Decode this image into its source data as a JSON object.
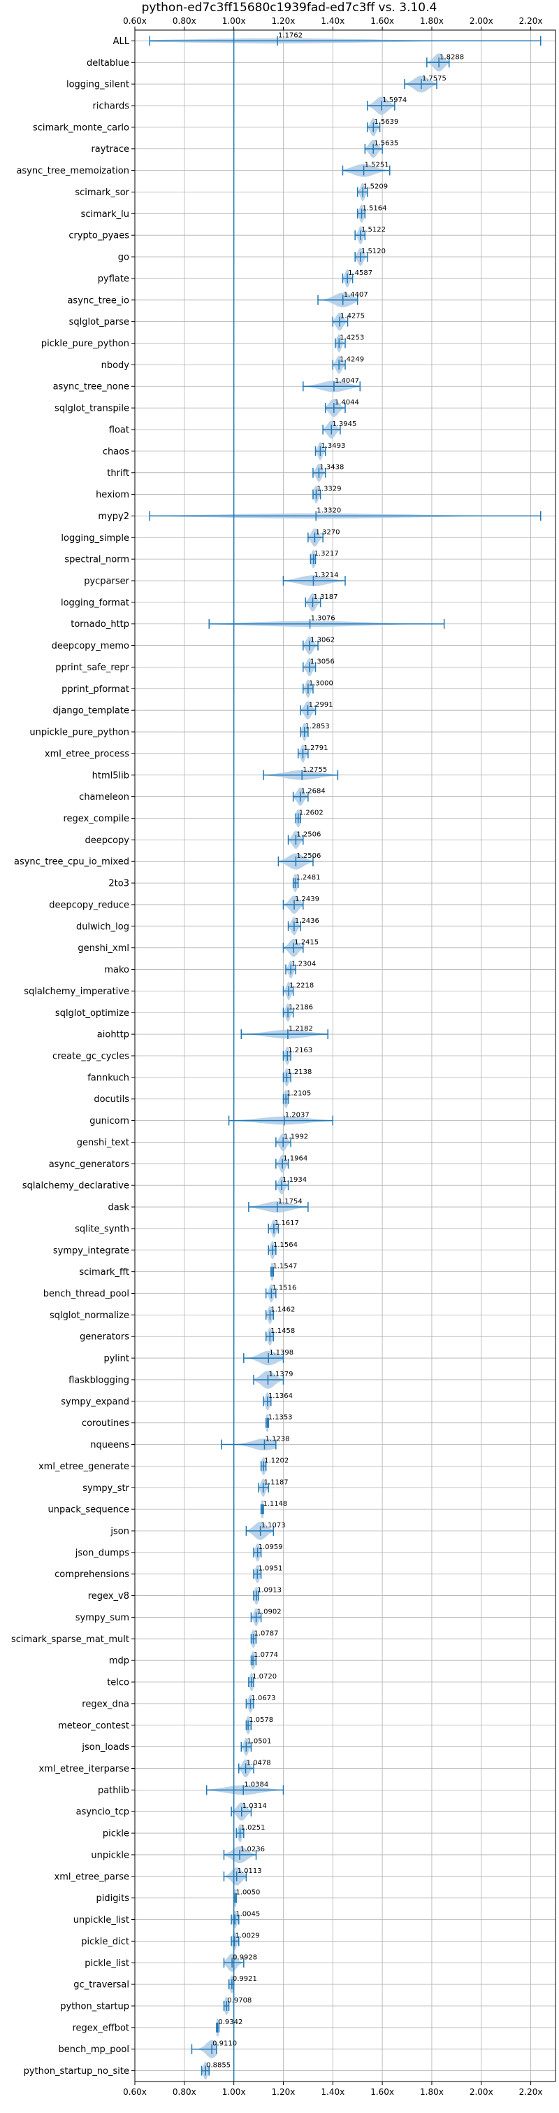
{
  "chart_data": {
    "type": "violin",
    "orientation": "horizontal",
    "title": "python-ed7c3ff15680c1939fad-ed7c3ff vs. 3.10.4",
    "xlabel": "",
    "ylabel": "",
    "xlim": [
      0.6,
      2.3
    ],
    "x_ticks": [
      0.6,
      0.8,
      1.0,
      1.2,
      1.4,
      1.6,
      1.8,
      2.0,
      2.2
    ],
    "x_tick_labels": [
      "0.60x",
      "0.80x",
      "1.00x",
      "1.20x",
      "1.40x",
      "1.60x",
      "1.80x",
      "2.00x",
      "2.20x"
    ],
    "reference_line": 1.0,
    "grid": true,
    "color": "#1f77b4",
    "fill_color": "#aecbe6",
    "benchmarks": [
      {
        "name": "ALL",
        "value": 1.1762,
        "label": "1.1762",
        "min": 0.66,
        "max": 2.24
      },
      {
        "name": "deltablue",
        "value": 1.8288,
        "label": "1.8288",
        "min": 1.78,
        "max": 1.87
      },
      {
        "name": "logging_silent",
        "value": 1.7575,
        "label": "1.7575",
        "min": 1.69,
        "max": 1.82
      },
      {
        "name": "richards",
        "value": 1.5974,
        "label": "1.5974",
        "min": 1.54,
        "max": 1.65
      },
      {
        "name": "scimark_monte_carlo",
        "value": 1.5639,
        "label": "1.5639",
        "min": 1.54,
        "max": 1.59
      },
      {
        "name": "raytrace",
        "value": 1.5635,
        "label": "1.5635",
        "min": 1.53,
        "max": 1.6
      },
      {
        "name": "async_tree_memoization",
        "value": 1.5251,
        "label": "1.5251",
        "min": 1.44,
        "max": 1.63
      },
      {
        "name": "scimark_sor",
        "value": 1.5209,
        "label": "1.5209",
        "min": 1.5,
        "max": 1.54
      },
      {
        "name": "scimark_lu",
        "value": 1.5164,
        "label": "1.5164",
        "min": 1.5,
        "max": 1.53
      },
      {
        "name": "crypto_pyaes",
        "value": 1.5122,
        "label": "1.5122",
        "min": 1.49,
        "max": 1.53
      },
      {
        "name": "go",
        "value": 1.512,
        "label": "1.5120",
        "min": 1.49,
        "max": 1.54
      },
      {
        "name": "pyflate",
        "value": 1.4587,
        "label": "1.4587",
        "min": 1.44,
        "max": 1.48
      },
      {
        "name": "async_tree_io",
        "value": 1.4407,
        "label": "1.4407",
        "min": 1.34,
        "max": 1.5
      },
      {
        "name": "sqlglot_parse",
        "value": 1.4275,
        "label": "1.4275",
        "min": 1.4,
        "max": 1.46
      },
      {
        "name": "pickle_pure_python",
        "value": 1.4253,
        "label": "1.4253",
        "min": 1.41,
        "max": 1.45
      },
      {
        "name": "nbody",
        "value": 1.4249,
        "label": "1.4249",
        "min": 1.4,
        "max": 1.45
      },
      {
        "name": "async_tree_none",
        "value": 1.4047,
        "label": "1.4047",
        "min": 1.28,
        "max": 1.51
      },
      {
        "name": "sqlglot_transpile",
        "value": 1.4044,
        "label": "1.4044",
        "min": 1.37,
        "max": 1.45
      },
      {
        "name": "float",
        "value": 1.3945,
        "label": "1.3945",
        "min": 1.36,
        "max": 1.43
      },
      {
        "name": "chaos",
        "value": 1.3493,
        "label": "1.3493",
        "min": 1.33,
        "max": 1.37
      },
      {
        "name": "thrift",
        "value": 1.3438,
        "label": "1.3438",
        "min": 1.32,
        "max": 1.37
      },
      {
        "name": "hexiom",
        "value": 1.3329,
        "label": "1.3329",
        "min": 1.32,
        "max": 1.35
      },
      {
        "name": "mypy2",
        "value": 1.332,
        "label": "1.3320",
        "min": 0.66,
        "max": 2.24
      },
      {
        "name": "logging_simple",
        "value": 1.327,
        "label": "1.3270",
        "min": 1.3,
        "max": 1.36
      },
      {
        "name": "spectral_norm",
        "value": 1.3217,
        "label": "1.3217",
        "min": 1.31,
        "max": 1.33
      },
      {
        "name": "pycparser",
        "value": 1.3214,
        "label": "1.3214",
        "min": 1.2,
        "max": 1.45
      },
      {
        "name": "logging_format",
        "value": 1.3187,
        "label": "1.3187",
        "min": 1.29,
        "max": 1.35
      },
      {
        "name": "tornado_http",
        "value": 1.3076,
        "label": "1.3076",
        "min": 0.9,
        "max": 1.85
      },
      {
        "name": "deepcopy_memo",
        "value": 1.3062,
        "label": "1.3062",
        "min": 1.28,
        "max": 1.34
      },
      {
        "name": "pprint_safe_repr",
        "value": 1.3056,
        "label": "1.3056",
        "min": 1.28,
        "max": 1.33
      },
      {
        "name": "pprint_pformat",
        "value": 1.3,
        "label": "1.3000",
        "min": 1.28,
        "max": 1.32
      },
      {
        "name": "django_template",
        "value": 1.2991,
        "label": "1.2991",
        "min": 1.27,
        "max": 1.33
      },
      {
        "name": "unpickle_pure_python",
        "value": 1.2853,
        "label": "1.2853",
        "min": 1.27,
        "max": 1.3
      },
      {
        "name": "xml_etree_process",
        "value": 1.2791,
        "label": "1.2791",
        "min": 1.26,
        "max": 1.3
      },
      {
        "name": "html5lib",
        "value": 1.2755,
        "label": "1.2755",
        "min": 1.12,
        "max": 1.42
      },
      {
        "name": "chameleon",
        "value": 1.2684,
        "label": "1.2684",
        "min": 1.24,
        "max": 1.3
      },
      {
        "name": "regex_compile",
        "value": 1.2602,
        "label": "1.2602",
        "min": 1.25,
        "max": 1.27
      },
      {
        "name": "deepcopy",
        "value": 1.2506,
        "label": "1.2506",
        "min": 1.22,
        "max": 1.28
      },
      {
        "name": "async_tree_cpu_io_mixed",
        "value": 1.2506,
        "label": "1.2506",
        "min": 1.18,
        "max": 1.32
      },
      {
        "name": "2to3",
        "value": 1.2481,
        "label": "1.2481",
        "min": 1.24,
        "max": 1.26
      },
      {
        "name": "deepcopy_reduce",
        "value": 1.2439,
        "label": "1.2439",
        "min": 1.2,
        "max": 1.28
      },
      {
        "name": "dulwich_log",
        "value": 1.2436,
        "label": "1.2436",
        "min": 1.22,
        "max": 1.27
      },
      {
        "name": "genshi_xml",
        "value": 1.2415,
        "label": "1.2415",
        "min": 1.2,
        "max": 1.28
      },
      {
        "name": "mako",
        "value": 1.2304,
        "label": "1.2304",
        "min": 1.21,
        "max": 1.25
      },
      {
        "name": "sqlalchemy_imperative",
        "value": 1.2218,
        "label": "1.2218",
        "min": 1.2,
        "max": 1.24
      },
      {
        "name": "sqlglot_optimize",
        "value": 1.2186,
        "label": "1.2186",
        "min": 1.2,
        "max": 1.24
      },
      {
        "name": "aiohttp",
        "value": 1.2182,
        "label": "1.2182",
        "min": 1.03,
        "max": 1.38
      },
      {
        "name": "create_gc_cycles",
        "value": 1.2163,
        "label": "1.2163",
        "min": 1.2,
        "max": 1.23
      },
      {
        "name": "fannkuch",
        "value": 1.2138,
        "label": "1.2138",
        "min": 1.2,
        "max": 1.23
      },
      {
        "name": "docutils",
        "value": 1.2105,
        "label": "1.2105",
        "min": 1.2,
        "max": 1.22
      },
      {
        "name": "gunicorn",
        "value": 1.2037,
        "label": "1.2037",
        "min": 0.98,
        "max": 1.4
      },
      {
        "name": "genshi_text",
        "value": 1.1992,
        "label": "1.1992",
        "min": 1.17,
        "max": 1.23
      },
      {
        "name": "async_generators",
        "value": 1.1964,
        "label": "1.1964",
        "min": 1.17,
        "max": 1.22
      },
      {
        "name": "sqlalchemy_declarative",
        "value": 1.1934,
        "label": "1.1934",
        "min": 1.17,
        "max": 1.22
      },
      {
        "name": "dask",
        "value": 1.1754,
        "label": "1.1754",
        "min": 1.06,
        "max": 1.3
      },
      {
        "name": "sqlite_synth",
        "value": 1.1617,
        "label": "1.1617",
        "min": 1.14,
        "max": 1.18
      },
      {
        "name": "sympy_integrate",
        "value": 1.1564,
        "label": "1.1564",
        "min": 1.14,
        "max": 1.17
      },
      {
        "name": "scimark_fft",
        "value": 1.1547,
        "label": "1.1547",
        "min": 1.15,
        "max": 1.16
      },
      {
        "name": "bench_thread_pool",
        "value": 1.1516,
        "label": "1.1516",
        "min": 1.13,
        "max": 1.17
      },
      {
        "name": "sqlglot_normalize",
        "value": 1.1462,
        "label": "1.1462",
        "min": 1.13,
        "max": 1.16
      },
      {
        "name": "generators",
        "value": 1.1458,
        "label": "1.1458",
        "min": 1.13,
        "max": 1.16
      },
      {
        "name": "pylint",
        "value": 1.1398,
        "label": "1.1398",
        "min": 1.04,
        "max": 1.2
      },
      {
        "name": "flaskblogging",
        "value": 1.1379,
        "label": "1.1379",
        "min": 1.08,
        "max": 1.2
      },
      {
        "name": "sympy_expand",
        "value": 1.1364,
        "label": "1.1364",
        "min": 1.12,
        "max": 1.15
      },
      {
        "name": "coroutines",
        "value": 1.1353,
        "label": "1.1353",
        "min": 1.13,
        "max": 1.14
      },
      {
        "name": "nqueens",
        "value": 1.1238,
        "label": "1.1238",
        "min": 0.95,
        "max": 1.17
      },
      {
        "name": "xml_etree_generate",
        "value": 1.1202,
        "label": "1.1202",
        "min": 1.11,
        "max": 1.13
      },
      {
        "name": "sympy_str",
        "value": 1.1187,
        "label": "1.1187",
        "min": 1.1,
        "max": 1.14
      },
      {
        "name": "unpack_sequence",
        "value": 1.1148,
        "label": "1.1148",
        "min": 1.11,
        "max": 1.12
      },
      {
        "name": "json",
        "value": 1.1073,
        "label": "1.1073",
        "min": 1.05,
        "max": 1.16
      },
      {
        "name": "json_dumps",
        "value": 1.0959,
        "label": "1.0959",
        "min": 1.08,
        "max": 1.11
      },
      {
        "name": "comprehensions",
        "value": 1.0951,
        "label": "1.0951",
        "min": 1.08,
        "max": 1.11
      },
      {
        "name": "regex_v8",
        "value": 1.0913,
        "label": "1.0913",
        "min": 1.08,
        "max": 1.1
      },
      {
        "name": "sympy_sum",
        "value": 1.0902,
        "label": "1.0902",
        "min": 1.07,
        "max": 1.11
      },
      {
        "name": "scimark_sparse_mat_mult",
        "value": 1.0787,
        "label": "1.0787",
        "min": 1.07,
        "max": 1.09
      },
      {
        "name": "mdp",
        "value": 1.0774,
        "label": "1.0774",
        "min": 1.07,
        "max": 1.09
      },
      {
        "name": "telco",
        "value": 1.072,
        "label": "1.0720",
        "min": 1.06,
        "max": 1.08
      },
      {
        "name": "regex_dna",
        "value": 1.0673,
        "label": "1.0673",
        "min": 1.05,
        "max": 1.08
      },
      {
        "name": "meteor_contest",
        "value": 1.0578,
        "label": "1.0578",
        "min": 1.05,
        "max": 1.07
      },
      {
        "name": "json_loads",
        "value": 1.0501,
        "label": "1.0501",
        "min": 1.03,
        "max": 1.07
      },
      {
        "name": "xml_etree_iterparse",
        "value": 1.0478,
        "label": "1.0478",
        "min": 1.02,
        "max": 1.08
      },
      {
        "name": "pathlib",
        "value": 1.0384,
        "label": "1.0384",
        "min": 0.89,
        "max": 1.2
      },
      {
        "name": "asyncio_tcp",
        "value": 1.0314,
        "label": "1.0314",
        "min": 0.99,
        "max": 1.07
      },
      {
        "name": "pickle",
        "value": 1.0251,
        "label": "1.0251",
        "min": 1.01,
        "max": 1.04
      },
      {
        "name": "unpickle",
        "value": 1.0236,
        "label": "1.0236",
        "min": 0.96,
        "max": 1.09
      },
      {
        "name": "xml_etree_parse",
        "value": 1.0113,
        "label": "1.0113",
        "min": 0.96,
        "max": 1.05
      },
      {
        "name": "pidigits",
        "value": 1.005,
        "label": "1.0050",
        "min": 1.0,
        "max": 1.01
      },
      {
        "name": "unpickle_list",
        "value": 1.0045,
        "label": "1.0045",
        "min": 0.99,
        "max": 1.02
      },
      {
        "name": "pickle_dict",
        "value": 1.0029,
        "label": "1.0029",
        "min": 0.99,
        "max": 1.02
      },
      {
        "name": "pickle_list",
        "value": 0.9928,
        "label": "0.9928",
        "min": 0.96,
        "max": 1.04
      },
      {
        "name": "gc_traversal",
        "value": 0.9921,
        "label": "0.9921",
        "min": 0.98,
        "max": 1.0
      },
      {
        "name": "python_startup",
        "value": 0.9708,
        "label": "0.9708",
        "min": 0.96,
        "max": 0.98
      },
      {
        "name": "regex_effbot",
        "value": 0.9342,
        "label": "0.9342",
        "min": 0.93,
        "max": 0.94
      },
      {
        "name": "bench_mp_pool",
        "value": 0.911,
        "label": "0.9110",
        "min": 0.83,
        "max": 0.93
      },
      {
        "name": "python_startup_no_site",
        "value": 0.8855,
        "label": "0.8855",
        "min": 0.87,
        "max": 0.9
      }
    ]
  }
}
